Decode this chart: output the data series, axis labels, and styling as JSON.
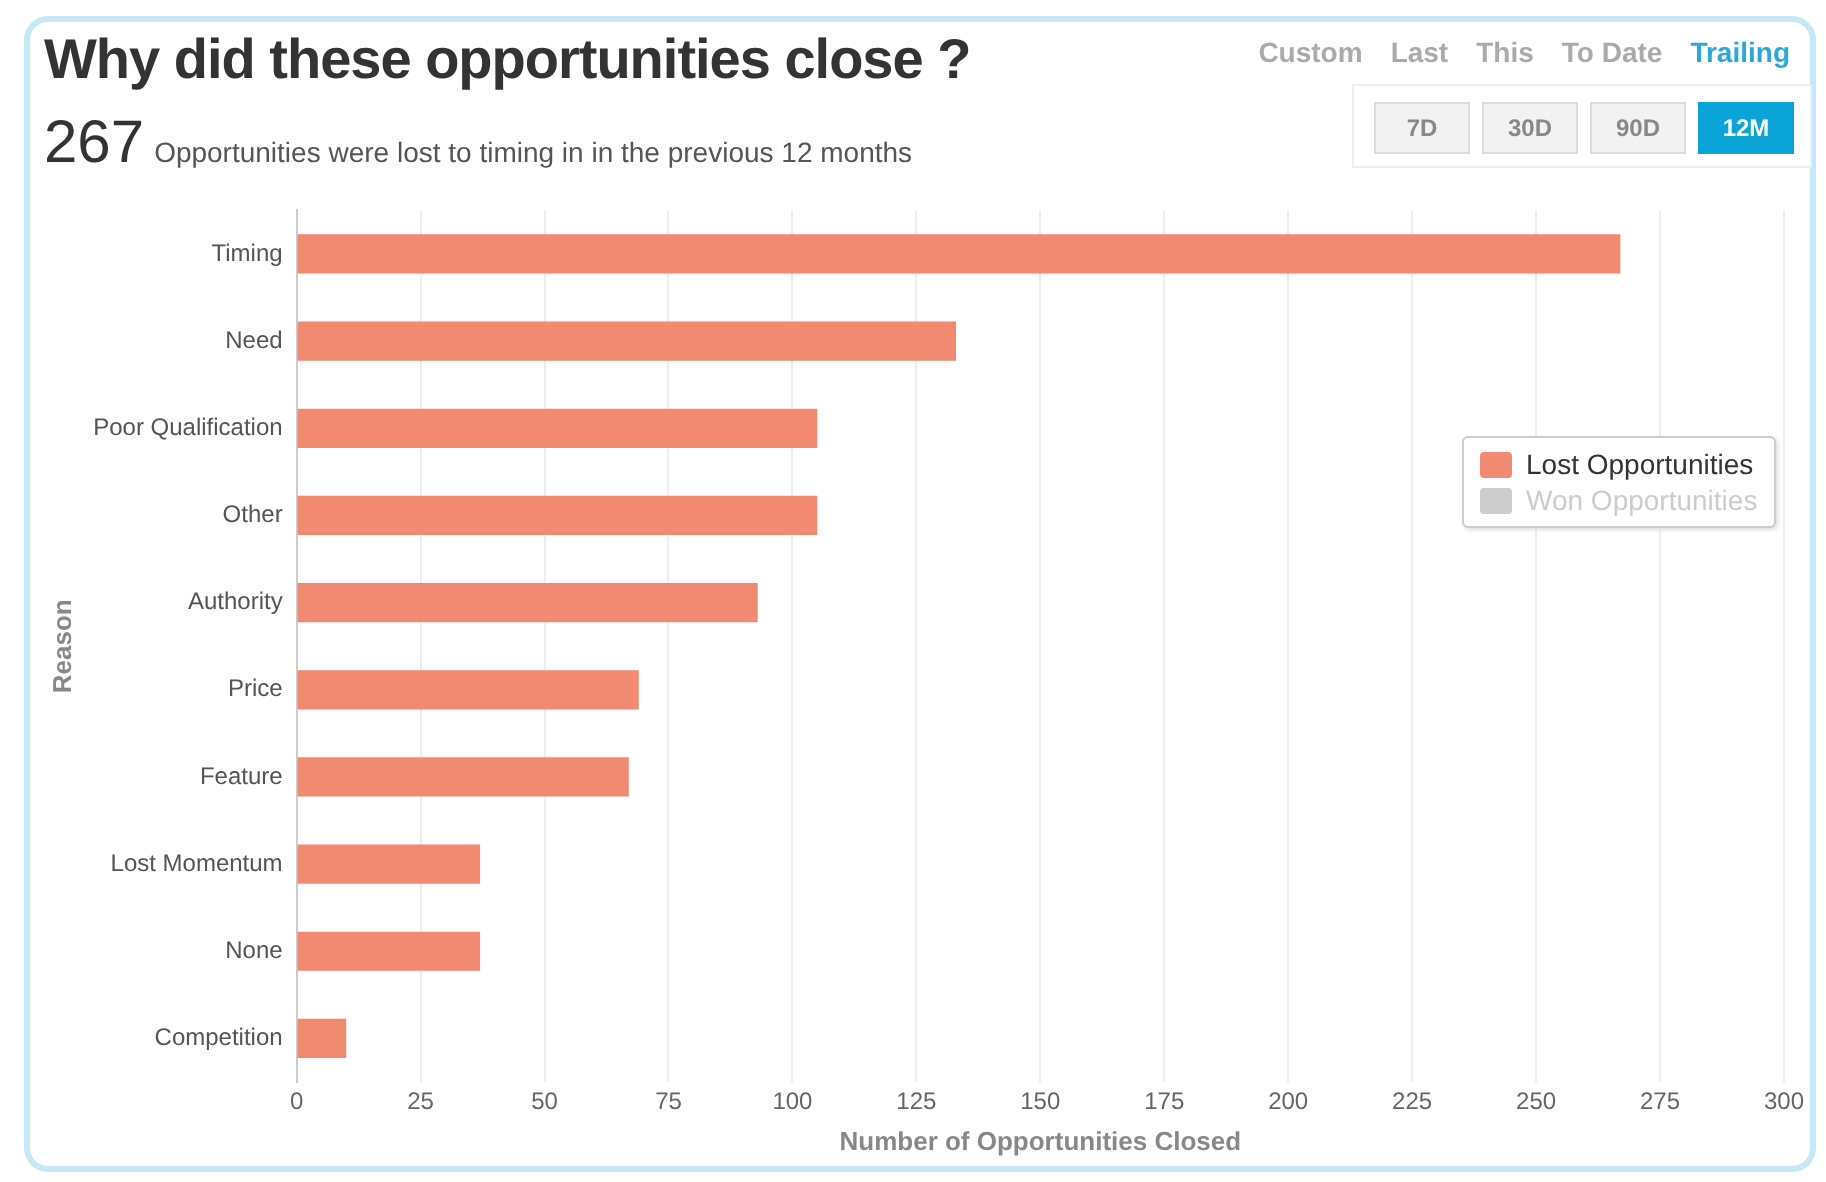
{
  "chart_data": {
    "type": "bar",
    "orientation": "horizontal",
    "title": "Why did these opportunities close ?",
    "subtitle": "Opportunities were lost to timing in in the previous 12 months",
    "xlabel": "Number of Opportunities Closed",
    "ylabel": "Reason",
    "categories": [
      "Timing",
      "Need",
      "Poor Qualification",
      "Other",
      "Authority",
      "Price",
      "Feature",
      "Lost Momentum",
      "None",
      "Competition"
    ],
    "series": [
      {
        "name": "Lost Opportunities",
        "color": "#f28a72",
        "values": [
          267,
          133,
          105,
          105,
          93,
          69,
          67,
          37,
          37,
          10
        ]
      },
      {
        "name": "Won Opportunities",
        "color": "#cccccc",
        "values": [
          null,
          null,
          null,
          null,
          null,
          null,
          null,
          null,
          null,
          null
        ]
      }
    ],
    "xlim": [
      0,
      300
    ],
    "xticks": [
      0,
      25,
      50,
      75,
      100,
      125,
      150,
      175,
      200,
      225,
      250,
      275,
      300
    ],
    "grid": "x",
    "legend": "right",
    "annotations": [
      "267",
      "Custom",
      "Last",
      "This",
      "To Date",
      "Trailing",
      "7D",
      "30D",
      "90D",
      "12M"
    ]
  }
}
